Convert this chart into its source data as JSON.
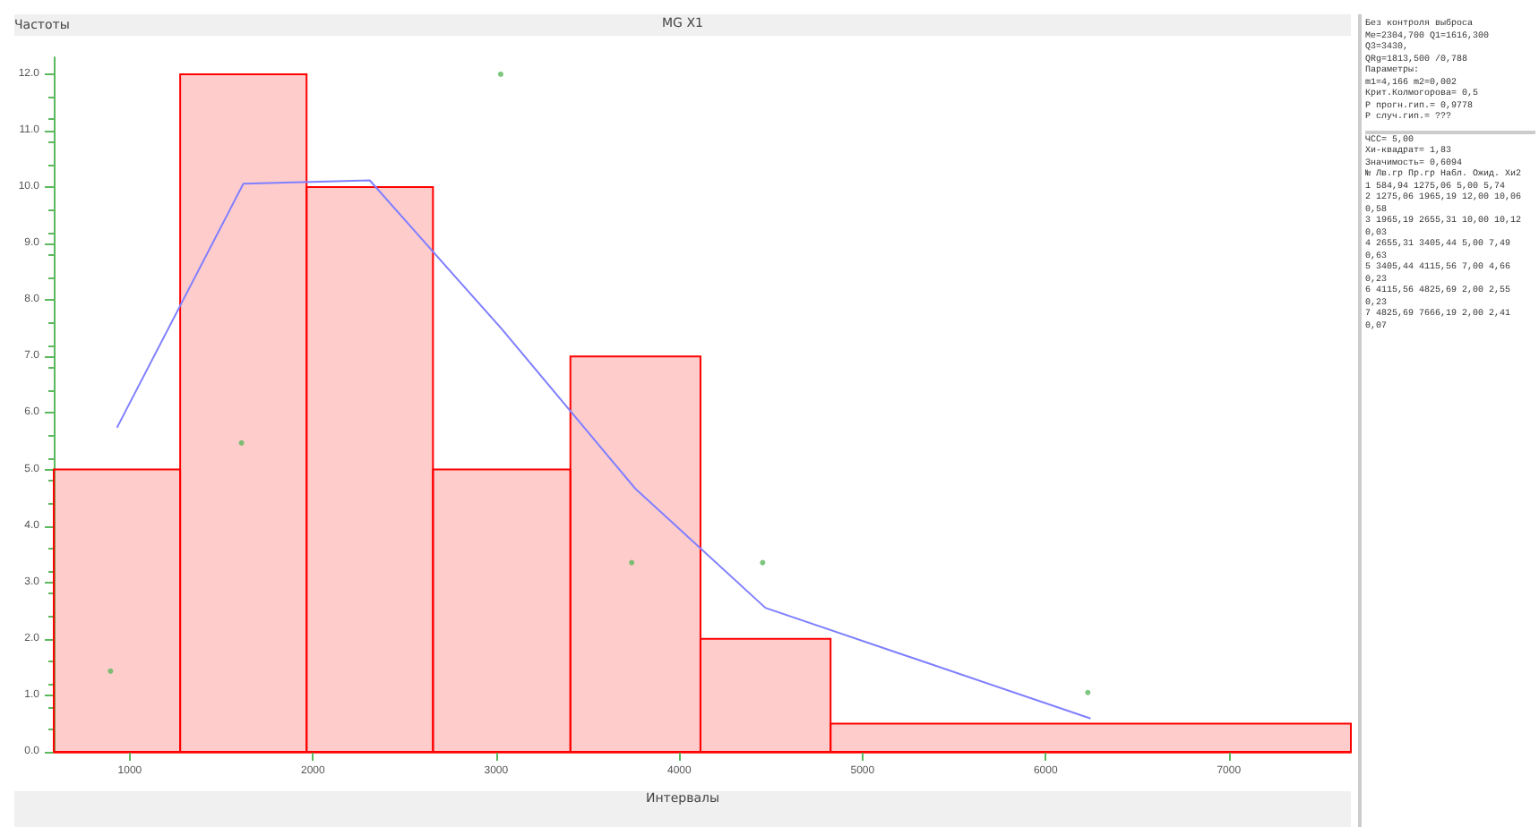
{
  "chart_data": {
    "type": "histogram",
    "title": "MG X1",
    "xlabel": "Интервалы",
    "ylabel": "Частоты",
    "bins": [
      584.94,
      1275.06,
      1965.19,
      2655.31,
      3405.44,
      4115.56,
      4825.69,
      7666.19
    ],
    "values": [
      5,
      12,
      10,
      5,
      7,
      2,
      0.5
    ],
    "color": "#ff0000",
    "series": [
      {
        "type": "line",
        "color": "#7f7fff",
        "x": [
          930,
          1620,
          2310,
          3030,
          3760,
          4470,
          6245
        ],
        "values": [
          5.74,
          10.06,
          10.12,
          7.49,
          4.66,
          2.55,
          0.59
        ]
      },
      {
        "type": "scatter",
        "color": "#5cb85c",
        "x": [
          895,
          1610,
          3025,
          3740,
          4455,
          6230
        ],
        "values": [
          1.43,
          5.47,
          12.0,
          3.35,
          3.35,
          1.05
        ]
      }
    ],
    "xlim": [
      584.94,
      7666.19
    ],
    "ylim": [
      0,
      12.3
    ],
    "xticks": [
      1000,
      2000,
      3000,
      4000,
      5000,
      6000,
      7000
    ],
    "yticks": [
      {
        "value": 0,
        "label": "0.0"
      },
      {
        "value": 1,
        "label": "1.0"
      },
      {
        "value": 2,
        "label": "2.0"
      },
      {
        "value": 3,
        "label": "3.0"
      },
      {
        "value": 4,
        "label": "4.0"
      },
      {
        "value": 5,
        "label": "5.0"
      },
      {
        "value": 6,
        "label": "6.0"
      },
      {
        "value": 7,
        "label": "7.0"
      },
      {
        "value": 8,
        "label": "8.0"
      },
      {
        "value": 9,
        "label": "9.0"
      },
      {
        "value": 10,
        "label": "10.0"
      },
      {
        "value": 11,
        "label": "11.0"
      },
      {
        "value": 12,
        "label": "12.0"
      }
    ],
    "grid": false,
    "annotations": [
      "Без контроля выброса",
      "Me=2304,700 Q1=1616,300 Q3=3430,",
      "QRg=1813,500 /0,788",
      "Параметры:",
      "m1=4,166 m2=0,002",
      "Крит.Колмогорова= 0,5",
      "P прогн.гип.= 0,9778",
      "P случ.гип.= ???",
      "ЧСС= 5,00",
      "Хи-квадрат= 1,83",
      "Значимость= 0,6094",
      "№ Лв.гр Пр.гр Набл. Ожид. Хи2",
      "1 584,94 1275,06 5,00 5,74",
      "2 1275,06 1965,19 12,00 10,06 0,58",
      "3 1965,19 2655,31 10,00 10,12 0,03",
      "4 2655,31 3405,44 5,00 7,49 0,63",
      "5 3405,44 4115,56 7,00 4,66 0,23",
      "6 4115,56 4825,69 2,00 2,55 0,23",
      "7 4825,69 7666,19 2,00 2,41 0,07"
    ]
  }
}
